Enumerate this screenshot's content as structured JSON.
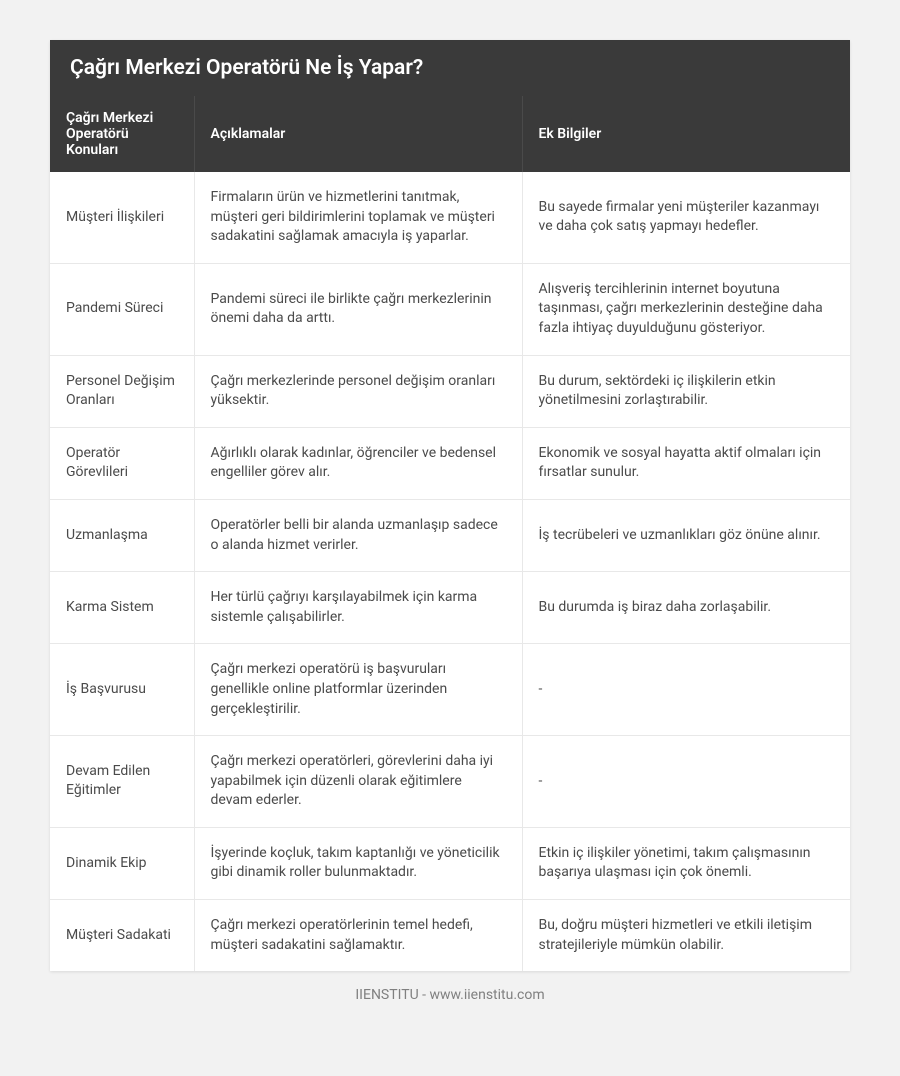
{
  "title": "Çağrı Merkezi Operatörü Ne İş Yapar?",
  "columns": [
    "Çağrı Merkezi Operatörü Konuları",
    "Açıklamalar",
    "Ek Bilgiler"
  ],
  "rows": [
    {
      "topic": "Müşteri İlişkileri",
      "desc": "Firmaların ürün ve hizmetlerini tanıtmak, müşteri geri bildirimlerini toplamak ve müşteri sadakatini sağlamak amacıyla iş yaparlar.",
      "extra": "Bu sayede firmalar yeni müşteriler kazanmayı ve daha çok satış yapmayı hedefler."
    },
    {
      "topic": "Pandemi Süreci",
      "desc": "Pandemi süreci ile birlikte çağrı merkezlerinin önemi daha da arttı.",
      "extra": "Alışveriş tercihlerinin internet boyutuna taşınması, çağrı merkezlerinin desteğine daha fazla ihtiyaç duyulduğunu gösteriyor."
    },
    {
      "topic": "Personel Değişim Oranları",
      "desc": "Çağrı merkezlerinde personel değişim oranları yüksektir.",
      "extra": "Bu durum, sektördeki iç ilişkilerin etkin yönetilmesini zorlaştırabilir."
    },
    {
      "topic": "Operatör Görevlileri",
      "desc": "Ağırlıklı olarak kadınlar, öğrenciler ve bedensel engelliler görev alır.",
      "extra": "Ekonomik ve sosyal hayatta aktif olmaları için fırsatlar sunulur."
    },
    {
      "topic": "Uzmanlaşma",
      "desc": "Operatörler belli bir alanda uzmanlaşıp sadece o alanda hizmet verirler.",
      "extra": "İş tecrübeleri ve uzmanlıkları göz önüne alınır."
    },
    {
      "topic": "Karma Sistem",
      "desc": "Her türlü çağrıyı karşılayabilmek için karma sistemle çalışabilirler.",
      "extra": "Bu durumda iş biraz daha zorlaşabilir."
    },
    {
      "topic": "İş Başvurusu",
      "desc": "Çağrı merkezi operatörü iş başvuruları genellikle online platformlar üzerinden gerçekleştirilir.",
      "extra": "-"
    },
    {
      "topic": "Devam Edilen Eğitimler",
      "desc": "Çağrı merkezi operatörleri, görevlerini daha iyi yapabilmek için düzenli olarak eğitimlere devam ederler.",
      "extra": "-"
    },
    {
      "topic": "Dinamik Ekip",
      "desc": "İşyerinde koçluk, takım kaptanlığı ve yöneticilik gibi dinamik roller bulunmaktadır.",
      "extra": "Etkin iç ilişkiler yönetimi, takım çalışmasının başarıya ulaşması için çok önemli."
    },
    {
      "topic": "Müşteri Sadakati",
      "desc": "Çağrı merkezi operatörlerinin temel hedefi, müşteri sadakatini sağlamaktır.",
      "extra": "Bu, doğru müşteri hizmetleri ve etkili iletişim stratejileriyle mümkün olabilir."
    }
  ],
  "footer": "IIENSTITU - www.iienstitu.com"
}
